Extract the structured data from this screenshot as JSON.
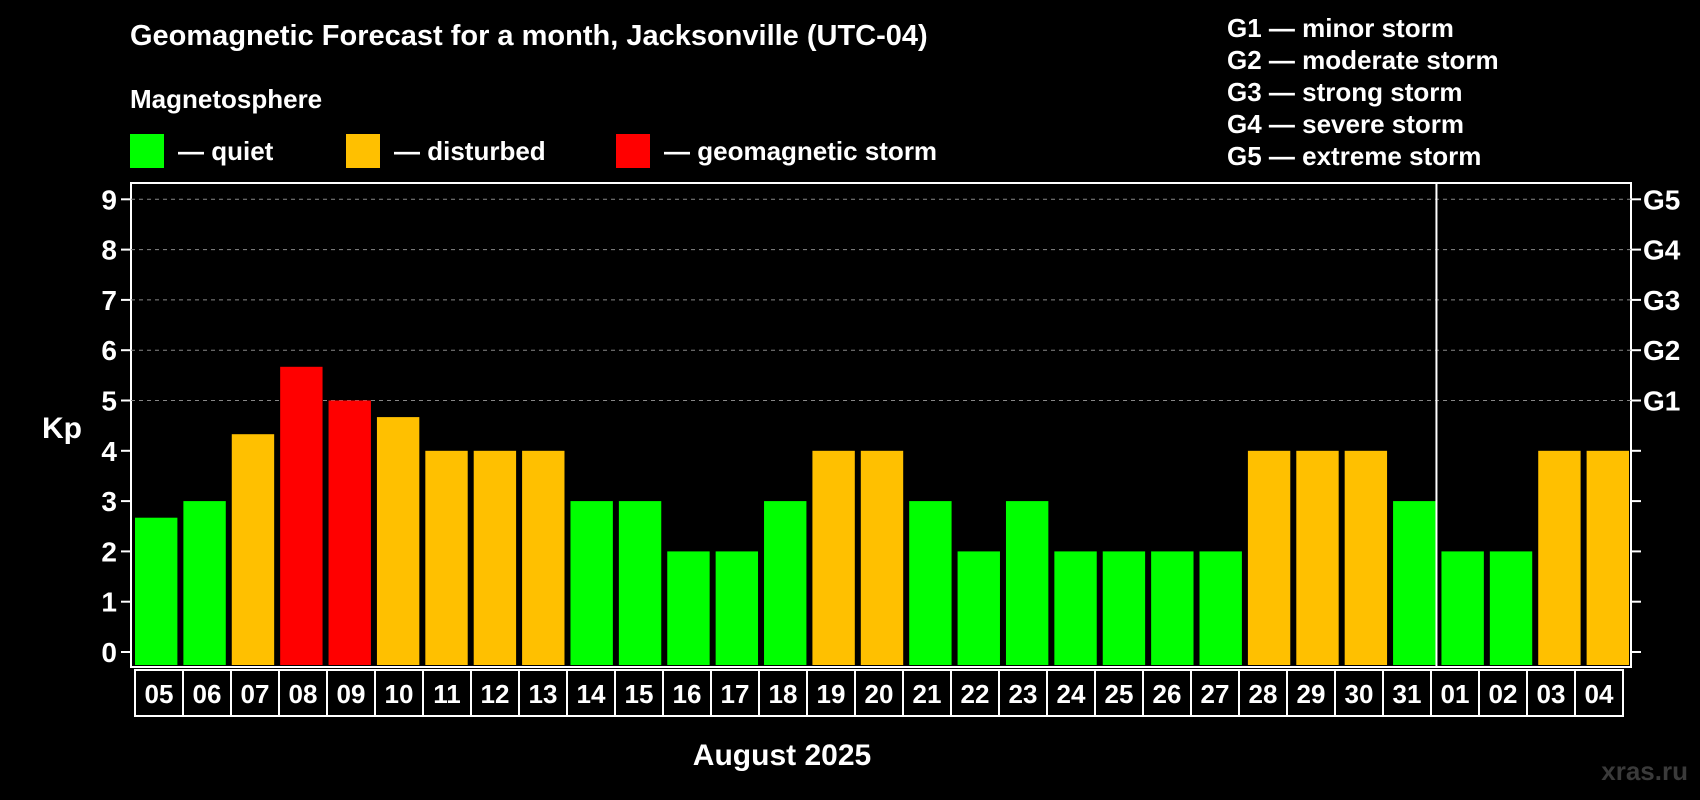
{
  "title": "Geomagnetic Forecast for a month, Jacksonville (UTC-04)",
  "magnetosphere_label": "Magnetosphere",
  "legend": [
    {
      "label": "— quiet",
      "color": "#00ff00"
    },
    {
      "label": "— disturbed",
      "color": "#ffc000"
    },
    {
      "label": "— geomagnetic storm",
      "color": "#ff0000"
    }
  ],
  "g_scale": [
    "G1 — minor storm",
    "G2 — moderate storm",
    "G3 — strong storm",
    "G4 — severe storm",
    "G5 — extreme storm"
  ],
  "watermark": "xras.ru",
  "chart_data": {
    "type": "bar",
    "title": "Geomagnetic Forecast for a month, Jacksonville (UTC-04)",
    "xlabel": "August 2025",
    "ylabel": "Kp",
    "ylim": [
      0,
      9
    ],
    "yticks": [
      "0",
      "1",
      "2",
      "3",
      "4",
      "5",
      "6",
      "7",
      "8",
      "9"
    ],
    "right_axis_labels": [
      {
        "kp": 5,
        "label": "G1"
      },
      {
        "kp": 6,
        "label": "G2"
      },
      {
        "kp": 7,
        "label": "G3"
      },
      {
        "kp": 8,
        "label": "G4"
      },
      {
        "kp": 9,
        "label": "G5"
      }
    ],
    "grid": "dashed horizontal at Kp 5–9",
    "month_separator_after_category": "31",
    "categories": [
      "05",
      "06",
      "07",
      "08",
      "09",
      "10",
      "11",
      "12",
      "13",
      "14",
      "15",
      "16",
      "17",
      "18",
      "19",
      "20",
      "21",
      "22",
      "23",
      "24",
      "25",
      "26",
      "27",
      "28",
      "29",
      "30",
      "31",
      "01",
      "02",
      "03",
      "04"
    ],
    "values": [
      2.67,
      3,
      4.33,
      5.67,
      5,
      4.67,
      4,
      4,
      4,
      3,
      3,
      2,
      2,
      3,
      4,
      4,
      3,
      2,
      3,
      2,
      2,
      2,
      2,
      4,
      4,
      4,
      3,
      2,
      2,
      4,
      4
    ],
    "colors": {
      "quiet": "#00ff00",
      "disturbed": "#ffc000",
      "storm": "#ff0000"
    }
  }
}
